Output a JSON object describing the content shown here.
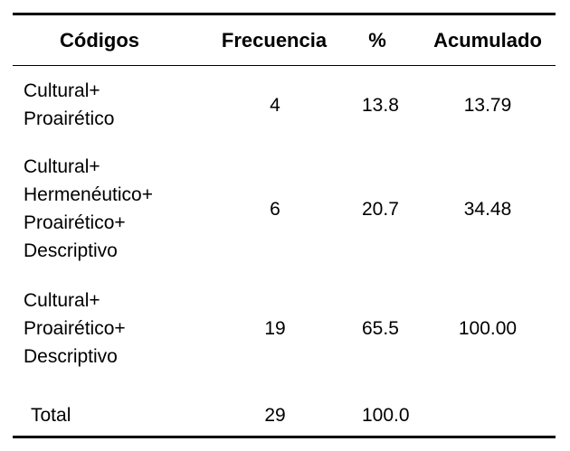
{
  "table": {
    "headers": {
      "codes": "Códigos",
      "frequency": "Frecuencia",
      "percent": "%",
      "cumulative": "Acumulado"
    },
    "rows": [
      {
        "code_lines": [
          "Cultural+",
          "Proairético"
        ],
        "frequency": "4",
        "percent": "13.8",
        "cumulative": "13.79"
      },
      {
        "code_lines": [
          "Cultural+",
          "Hermenéutico+",
          "Proairético+",
          "Descriptivo"
        ],
        "frequency": "6",
        "percent": "20.7",
        "cumulative": "34.48"
      },
      {
        "code_lines": [
          "Cultural+",
          "Proairético+",
          "Descriptivo"
        ],
        "frequency": "19",
        "percent": "65.5",
        "cumulative": "100.00"
      }
    ],
    "total": {
      "label": "Total",
      "frequency": "29",
      "percent": "100.0"
    }
  }
}
